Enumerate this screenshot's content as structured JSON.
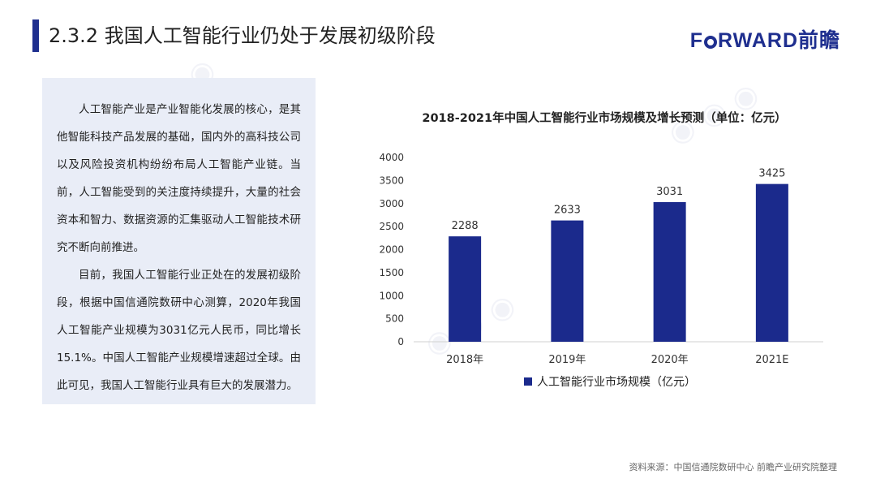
{
  "header": {
    "title": "2.3.2 我国人工智能行业仍处于发展初级阶段",
    "brand_pre": "F",
    "brand_post": "RWARD前瞻"
  },
  "text_panel": {
    "paragraphs": [
      "人工智能产业是产业智能化发展的核心，是其他智能科技产品发展的基础，国内外的高科技公司以及风险投资机构纷纷布局人工智能产业链。当前，人工智能受到的关注度持续提升，大量的社会资本和智力、数据资源的汇集驱动人工智能技术研究不断向前推进。",
      "目前，我国人工智能行业正处在的发展初级阶段，根据中国信通院数研中心测算，2020年我国人工智能产业规模为3031亿元人民币，同比增长15.1%。中国人工智能产业规模增速超过全球。由此可见，我国人工智能行业具有巨大的发展潜力。"
    ]
  },
  "chart_data": {
    "type": "bar",
    "title": "2018-2021年中国人工智能行业市场规模及增长预测（单位：亿元）",
    "categories": [
      "2018年",
      "2019年",
      "2020年",
      "2021E"
    ],
    "series": [
      {
        "name": "人工智能行业市场规模（亿元）",
        "values": [
          2288,
          2633,
          3031,
          3425
        ]
      }
    ],
    "ylim": [
      0,
      4000
    ],
    "yticks": [
      0,
      500,
      1000,
      1500,
      2000,
      2500,
      3000,
      3500,
      4000
    ],
    "grid": false,
    "legend": "bottom",
    "bar_color": "#1b2a8c"
  },
  "footer": {
    "source": "资料来源：中国信通院数研中心 前瞻产业研究院整理"
  }
}
